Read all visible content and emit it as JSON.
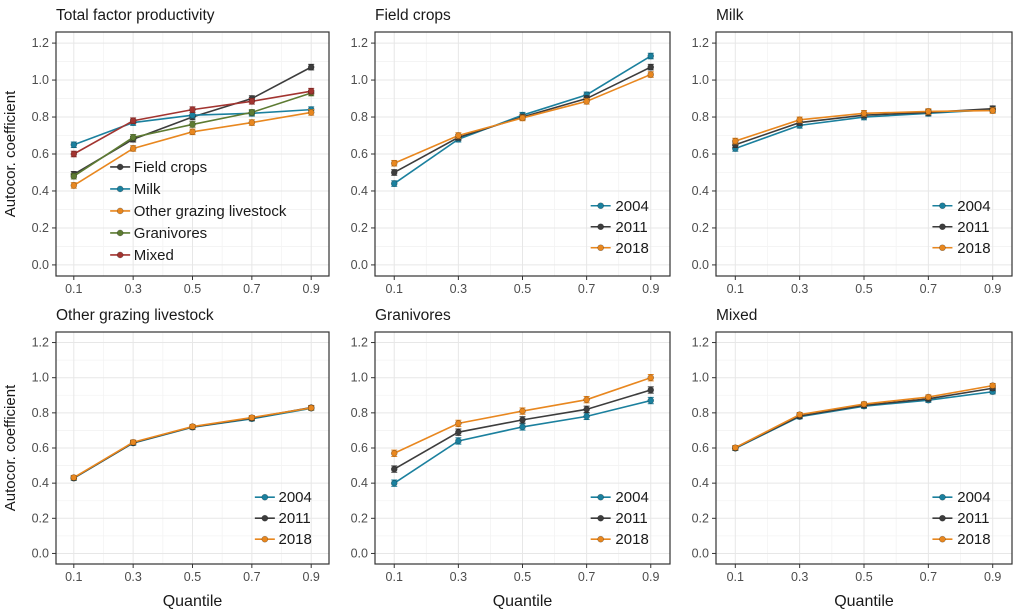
{
  "figure": {
    "background": "#ffffff",
    "ylabel": "Autocor. coefficient",
    "xlabel": "Quantile",
    "x_tick_labels": [
      "0.1",
      "0.3",
      "0.5",
      "0.7",
      "0.9"
    ],
    "y_tick_labels": [
      "0.0",
      "0.2",
      "0.4",
      "0.6",
      "0.8",
      "1.0",
      "1.2"
    ],
    "colors": {
      "teal": "#1b809e",
      "dark_gray": "#3d3d3d",
      "orange": "#e8871f",
      "olive_green": "#5d7b32",
      "dark_red": "#a23430",
      "tick_label": "#4d4d4d",
      "axis_title": "#1a1a1a",
      "panel_border": "#333333",
      "grid_major": "#e7e7e7",
      "grid_minor": "#f3f3f3"
    }
  },
  "chart_data": [
    {
      "type": "line",
      "title": "Total factor productivity",
      "x": [
        0.1,
        0.3,
        0.5,
        0.7,
        0.9
      ],
      "xlabel": "",
      "ylabel": "Autocor. coefficient",
      "ylim": [
        0.0,
        1.2
      ],
      "grid": true,
      "error_bar": 0.015,
      "legend_position": "inside-bottom-left",
      "series": [
        {
          "name": "Field crops",
          "color": "#3d3d3d",
          "values": [
            0.49,
            0.68,
            0.8,
            0.9,
            1.07
          ]
        },
        {
          "name": "Milk",
          "color": "#1b809e",
          "values": [
            0.65,
            0.77,
            0.81,
            0.82,
            0.84
          ]
        },
        {
          "name": "Other grazing livestock",
          "color": "#e8871f",
          "values": [
            0.43,
            0.63,
            0.72,
            0.77,
            0.825
          ]
        },
        {
          "name": "Granivores",
          "color": "#5d7b32",
          "values": [
            0.48,
            0.69,
            0.76,
            0.825,
            0.93
          ]
        },
        {
          "name": "Mixed",
          "color": "#a23430",
          "values": [
            0.6,
            0.78,
            0.84,
            0.885,
            0.94
          ]
        }
      ]
    },
    {
      "type": "line",
      "title": "Field crops",
      "x": [
        0.1,
        0.3,
        0.5,
        0.7,
        0.9
      ],
      "xlabel": "",
      "ylabel": "",
      "ylim": [
        0.0,
        1.2
      ],
      "grid": true,
      "error_bar": 0.015,
      "legend_position": "inside-bottom-right",
      "series": [
        {
          "name": "2004",
          "color": "#1b809e",
          "values": [
            0.44,
            0.68,
            0.81,
            0.92,
            1.13
          ]
        },
        {
          "name": "2011",
          "color": "#3d3d3d",
          "values": [
            0.5,
            0.69,
            0.8,
            0.9,
            1.07
          ]
        },
        {
          "name": "2018",
          "color": "#e8871f",
          "values": [
            0.55,
            0.7,
            0.795,
            0.885,
            1.03
          ]
        }
      ]
    },
    {
      "type": "line",
      "title": "Milk",
      "x": [
        0.1,
        0.3,
        0.5,
        0.7,
        0.9
      ],
      "xlabel": "",
      "ylabel": "",
      "ylim": [
        0.0,
        1.2
      ],
      "grid": true,
      "error_bar": 0.015,
      "legend_position": "inside-bottom-right",
      "series": [
        {
          "name": "2004",
          "color": "#1b809e",
          "values": [
            0.63,
            0.755,
            0.8,
            0.82,
            0.84
          ]
        },
        {
          "name": "2011",
          "color": "#3d3d3d",
          "values": [
            0.65,
            0.77,
            0.81,
            0.825,
            0.845
          ]
        },
        {
          "name": "2018",
          "color": "#e8871f",
          "values": [
            0.67,
            0.785,
            0.82,
            0.83,
            0.835
          ]
        }
      ]
    },
    {
      "type": "line",
      "title": "Other grazing livestock",
      "x": [
        0.1,
        0.3,
        0.5,
        0.7,
        0.9
      ],
      "xlabel": "Quantile",
      "ylabel": "Autocor. coefficient",
      "ylim": [
        0.0,
        1.2
      ],
      "grid": true,
      "error_bar": 0.012,
      "legend_position": "inside-bottom-right",
      "series": [
        {
          "name": "2004",
          "color": "#1b809e",
          "values": [
            0.428,
            0.628,
            0.718,
            0.766,
            0.826
          ]
        },
        {
          "name": "2011",
          "color": "#3d3d3d",
          "values": [
            0.43,
            0.63,
            0.72,
            0.77,
            0.83
          ]
        },
        {
          "name": "2018",
          "color": "#e8871f",
          "values": [
            0.432,
            0.633,
            0.722,
            0.773,
            0.828
          ]
        }
      ]
    },
    {
      "type": "line",
      "title": "Granivores",
      "x": [
        0.1,
        0.3,
        0.5,
        0.7,
        0.9
      ],
      "xlabel": "Quantile",
      "ylabel": "",
      "ylim": [
        0.0,
        1.2
      ],
      "grid": true,
      "error_bar": 0.018,
      "legend_position": "inside-bottom-right",
      "series": [
        {
          "name": "2004",
          "color": "#1b809e",
          "values": [
            0.4,
            0.64,
            0.72,
            0.78,
            0.87
          ]
        },
        {
          "name": "2011",
          "color": "#3d3d3d",
          "values": [
            0.48,
            0.69,
            0.76,
            0.82,
            0.93
          ]
        },
        {
          "name": "2018",
          "color": "#e8871f",
          "values": [
            0.57,
            0.74,
            0.81,
            0.875,
            1.0
          ]
        }
      ]
    },
    {
      "type": "line",
      "title": "Mixed",
      "x": [
        0.1,
        0.3,
        0.5,
        0.7,
        0.9
      ],
      "xlabel": "Quantile",
      "ylabel": "",
      "ylim": [
        0.0,
        1.2
      ],
      "grid": true,
      "error_bar": 0.012,
      "legend_position": "inside-bottom-right",
      "series": [
        {
          "name": "2004",
          "color": "#1b809e",
          "values": [
            0.598,
            0.778,
            0.838,
            0.872,
            0.92
          ]
        },
        {
          "name": "2011",
          "color": "#3d3d3d",
          "values": [
            0.6,
            0.782,
            0.843,
            0.88,
            0.94
          ]
        },
        {
          "name": "2018",
          "color": "#e8871f",
          "values": [
            0.602,
            0.79,
            0.85,
            0.89,
            0.955
          ]
        }
      ]
    }
  ]
}
